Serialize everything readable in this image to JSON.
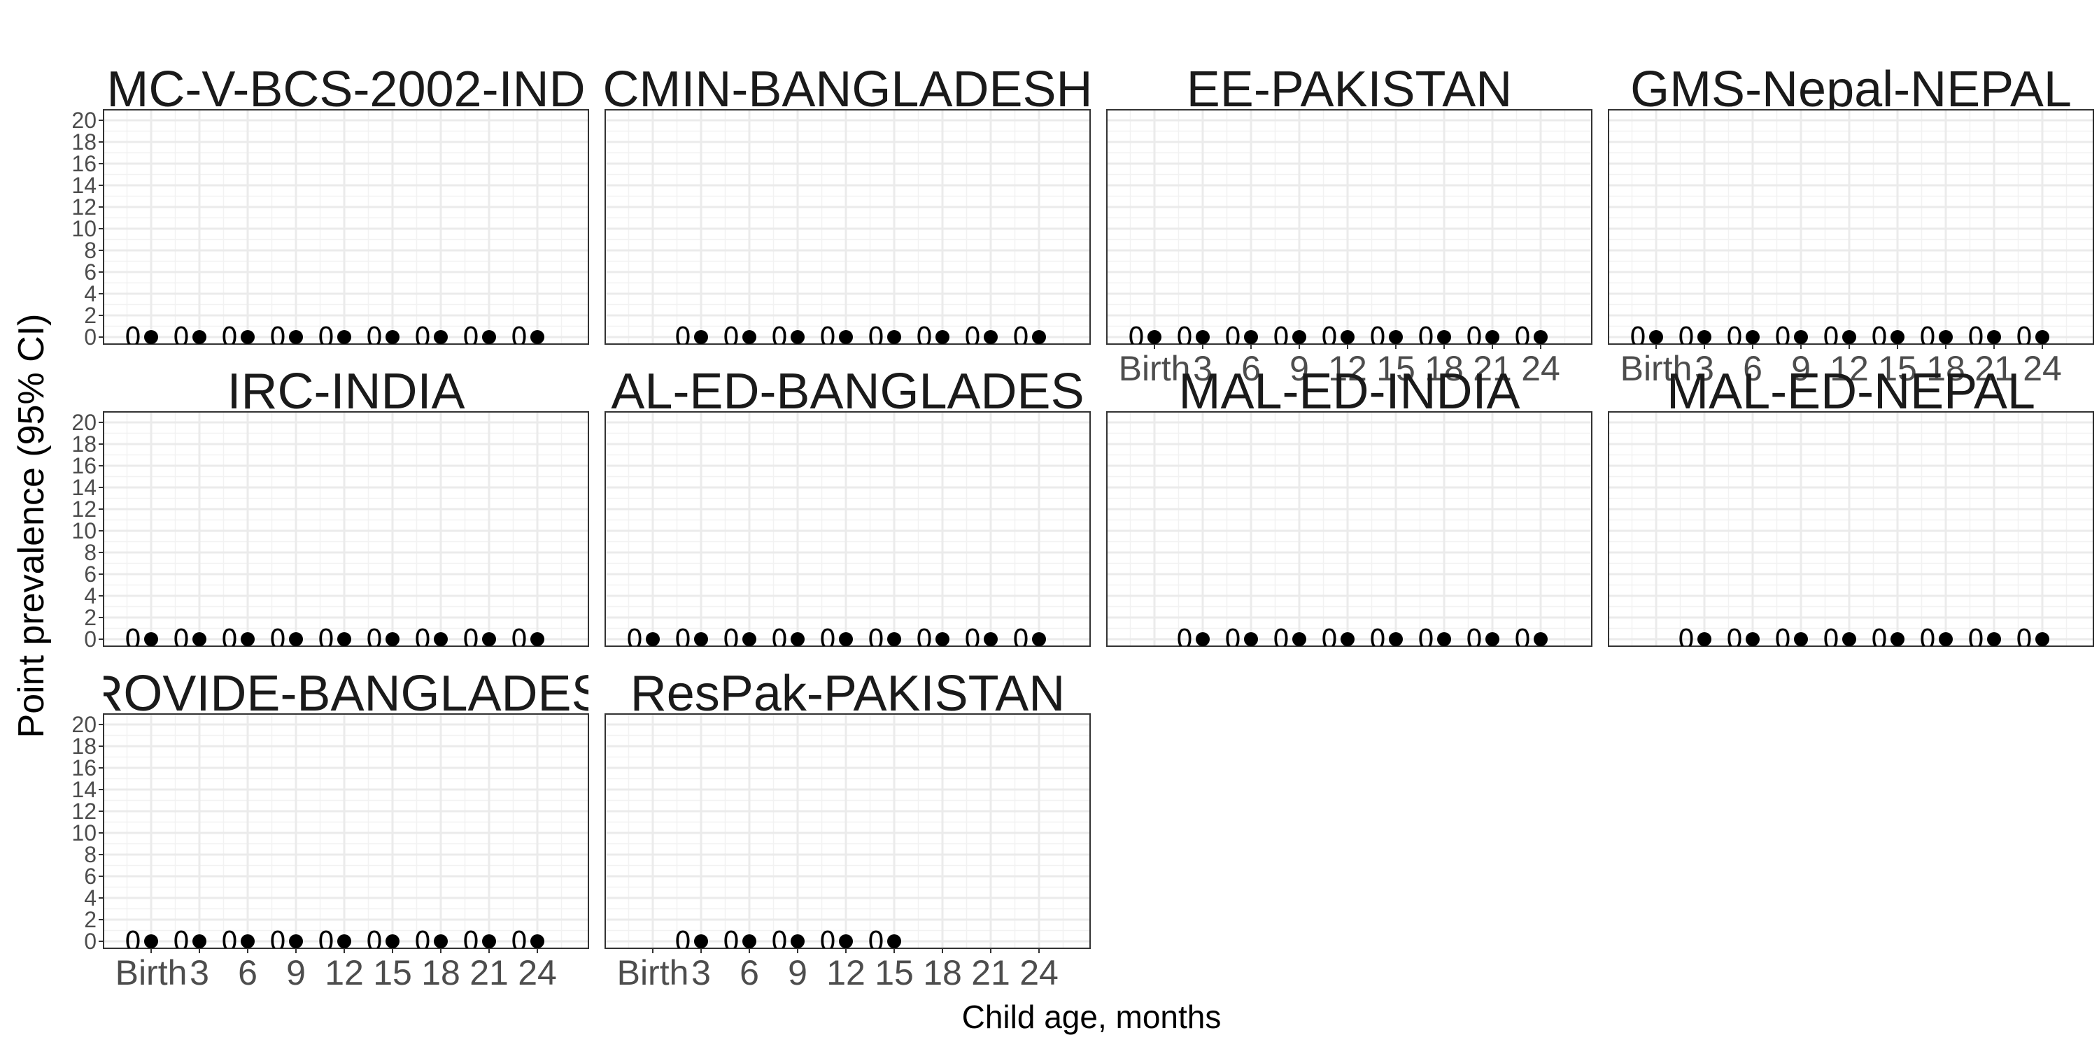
{
  "chart_data": {
    "type": "scatter",
    "xlabel": "Child age, months",
    "ylabel": "Point prevalence (95% CI)",
    "x_categories": [
      "Birth",
      "3",
      "6",
      "9",
      "12",
      "15",
      "18",
      "21",
      "24"
    ],
    "ylim": [
      0,
      20
    ],
    "y_ticks": [
      "0",
      "2",
      "4",
      "6",
      "8",
      "10",
      "12",
      "14",
      "16",
      "18",
      "20"
    ],
    "grid": true,
    "legend": "none",
    "panels": [
      {
        "title": "MC-V-BCS-2002-IND",
        "points": [
          {
            "x": "Birth",
            "y": 0,
            "label": "0"
          },
          {
            "x": "3",
            "y": 0,
            "label": "0"
          },
          {
            "x": "6",
            "y": 0,
            "label": "0"
          },
          {
            "x": "9",
            "y": 0,
            "label": "0"
          },
          {
            "x": "12",
            "y": 0,
            "label": "0"
          },
          {
            "x": "15",
            "y": 0,
            "label": "0"
          },
          {
            "x": "18",
            "y": 0,
            "label": "0"
          },
          {
            "x": "21",
            "y": 0,
            "label": "0"
          },
          {
            "x": "24",
            "y": 0,
            "label": "0"
          }
        ]
      },
      {
        "title": "CMIN-BANGLADESH",
        "points": [
          {
            "x": "3",
            "y": 0,
            "label": "0"
          },
          {
            "x": "6",
            "y": 0,
            "label": "0"
          },
          {
            "x": "9",
            "y": 0,
            "label": "0"
          },
          {
            "x": "12",
            "y": 0,
            "label": "0"
          },
          {
            "x": "15",
            "y": 0,
            "label": "0"
          },
          {
            "x": "18",
            "y": 0,
            "label": "0"
          },
          {
            "x": "21",
            "y": 0,
            "label": "0"
          },
          {
            "x": "24",
            "y": 0,
            "label": "0"
          }
        ]
      },
      {
        "title": "EE-PAKISTAN",
        "points": [
          {
            "x": "Birth",
            "y": 0,
            "label": "0"
          },
          {
            "x": "3",
            "y": 0,
            "label": "0"
          },
          {
            "x": "6",
            "y": 0,
            "label": "0"
          },
          {
            "x": "9",
            "y": 0,
            "label": "0"
          },
          {
            "x": "12",
            "y": 0,
            "label": "0"
          },
          {
            "x": "15",
            "y": 0,
            "label": "0"
          },
          {
            "x": "18",
            "y": 0,
            "label": "0"
          },
          {
            "x": "21",
            "y": 0,
            "label": "0"
          },
          {
            "x": "24",
            "y": 0,
            "label": "0"
          }
        ]
      },
      {
        "title": "GMS-Nepal-NEPAL",
        "points": [
          {
            "x": "Birth",
            "y": 0,
            "label": "0"
          },
          {
            "x": "3",
            "y": 0,
            "label": "0"
          },
          {
            "x": "6",
            "y": 0,
            "label": "0"
          },
          {
            "x": "9",
            "y": 0,
            "label": "0"
          },
          {
            "x": "12",
            "y": 0,
            "label": "0"
          },
          {
            "x": "15",
            "y": 0,
            "label": "0"
          },
          {
            "x": "18",
            "y": 0,
            "label": "0"
          },
          {
            "x": "21",
            "y": 0,
            "label": "0"
          },
          {
            "x": "24",
            "y": 0,
            "label": "0"
          }
        ]
      },
      {
        "title": "IRC-INDIA",
        "points": [
          {
            "x": "Birth",
            "y": 0,
            "label": "0"
          },
          {
            "x": "3",
            "y": 0,
            "label": "0"
          },
          {
            "x": "6",
            "y": 0,
            "label": "0"
          },
          {
            "x": "9",
            "y": 0,
            "label": "0"
          },
          {
            "x": "12",
            "y": 0,
            "label": "0"
          },
          {
            "x": "15",
            "y": 0,
            "label": "0"
          },
          {
            "x": "18",
            "y": 0,
            "label": "0"
          },
          {
            "x": "21",
            "y": 0,
            "label": "0"
          },
          {
            "x": "24",
            "y": 0,
            "label": "0"
          }
        ]
      },
      {
        "title": "AL-ED-BANGLADES",
        "points": [
          {
            "x": "Birth",
            "y": 0,
            "label": "0"
          },
          {
            "x": "3",
            "y": 0,
            "label": "0"
          },
          {
            "x": "6",
            "y": 0,
            "label": "0"
          },
          {
            "x": "9",
            "y": 0,
            "label": "0"
          },
          {
            "x": "12",
            "y": 0,
            "label": "0"
          },
          {
            "x": "15",
            "y": 0,
            "label": "0"
          },
          {
            "x": "18",
            "y": 0,
            "label": "0"
          },
          {
            "x": "21",
            "y": 0,
            "label": "0"
          },
          {
            "x": "24",
            "y": 0,
            "label": "0"
          }
        ]
      },
      {
        "title": "MAL-ED-INDIA",
        "points": [
          {
            "x": "3",
            "y": 0,
            "label": "0"
          },
          {
            "x": "6",
            "y": 0,
            "label": "0"
          },
          {
            "x": "9",
            "y": 0,
            "label": "0"
          },
          {
            "x": "12",
            "y": 0,
            "label": "0"
          },
          {
            "x": "15",
            "y": 0,
            "label": "0"
          },
          {
            "x": "18",
            "y": 0,
            "label": "0"
          },
          {
            "x": "21",
            "y": 0,
            "label": "0"
          },
          {
            "x": "24",
            "y": 0,
            "label": "0"
          }
        ]
      },
      {
        "title": "MAL-ED-NEPAL",
        "points": [
          {
            "x": "3",
            "y": 0,
            "label": "0"
          },
          {
            "x": "6",
            "y": 0,
            "label": "0"
          },
          {
            "x": "9",
            "y": 0,
            "label": "0"
          },
          {
            "x": "12",
            "y": 0,
            "label": "0"
          },
          {
            "x": "15",
            "y": 0,
            "label": "0"
          },
          {
            "x": "18",
            "y": 0,
            "label": "0"
          },
          {
            "x": "21",
            "y": 0,
            "label": "0"
          },
          {
            "x": "24",
            "y": 0,
            "label": "0"
          }
        ]
      },
      {
        "title": "ROVIDE-BANGLADES",
        "points": [
          {
            "x": "Birth",
            "y": 0,
            "label": "0"
          },
          {
            "x": "3",
            "y": 0,
            "label": "0"
          },
          {
            "x": "6",
            "y": 0,
            "label": "0"
          },
          {
            "x": "9",
            "y": 0,
            "label": "0"
          },
          {
            "x": "12",
            "y": 0,
            "label": "0"
          },
          {
            "x": "15",
            "y": 0,
            "label": "0"
          },
          {
            "x": "18",
            "y": 0,
            "label": "0"
          },
          {
            "x": "21",
            "y": 0,
            "label": "0"
          },
          {
            "x": "24",
            "y": 0,
            "label": "0"
          }
        ]
      },
      {
        "title": "ResPak-PAKISTAN",
        "points": [
          {
            "x": "3",
            "y": 0,
            "label": "0"
          },
          {
            "x": "6",
            "y": 0,
            "label": "0"
          },
          {
            "x": "9",
            "y": 0,
            "label": "0"
          },
          {
            "x": "12",
            "y": 0,
            "label": "0"
          },
          {
            "x": "15",
            "y": 0,
            "label": "0"
          }
        ]
      }
    ]
  }
}
